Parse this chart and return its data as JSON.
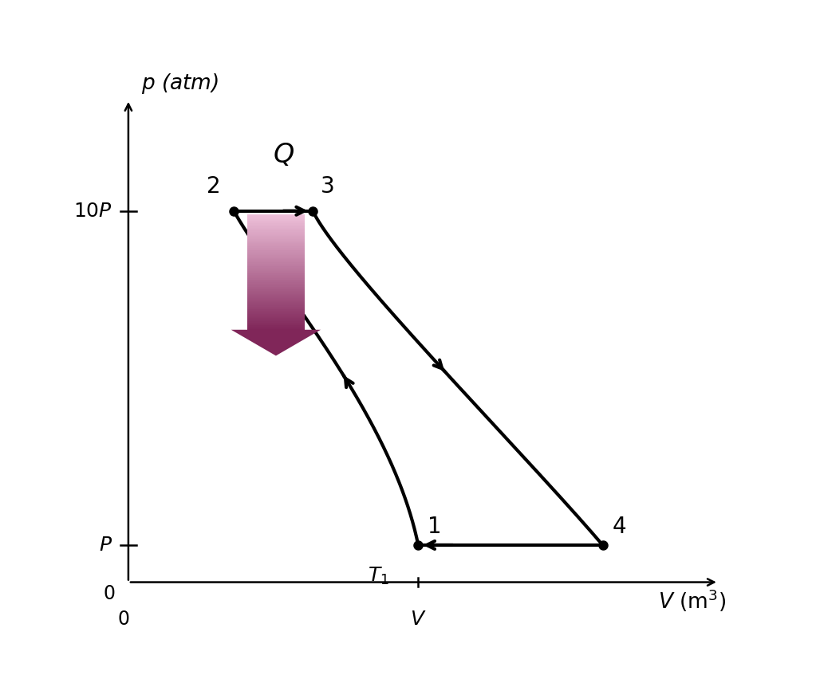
{
  "background_color": "#ffffff",
  "line_color": "#000000",
  "line_width": 3.0,
  "point_size": 8,
  "p_low": 1.0,
  "p_high": 10.0,
  "v2": 2.0,
  "v3": 3.5,
  "v1": 5.5,
  "v4": 9.0,
  "arrow_color_top": "#e8b8d0",
  "arrow_color_bottom": "#7a2550",
  "xlim": [
    -0.5,
    11.5
  ],
  "ylim": [
    -0.5,
    13.5
  ],
  "axis_x_min": 0.0,
  "axis_x_max": 11.2,
  "axis_y_min": 0.0,
  "axis_y_max": 13.0
}
